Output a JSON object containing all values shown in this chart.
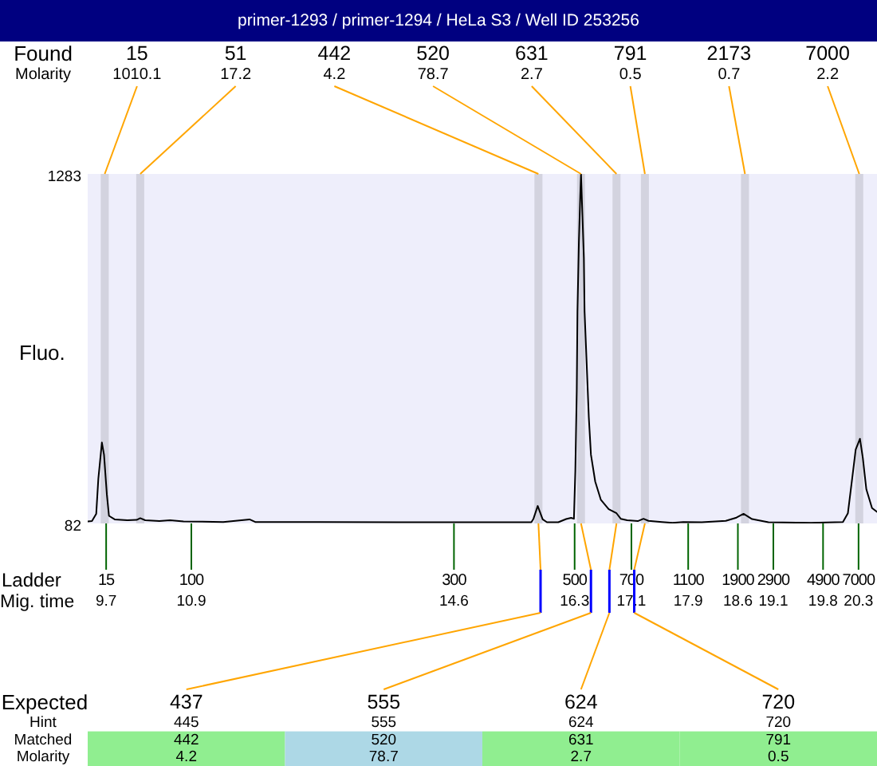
{
  "chart_data": {
    "type": "line",
    "title": "primer-1293 / primer-1294 / HeLa S3 / Well ID 253256",
    "xlabel": "Mig. time",
    "ylabel": "Fluo.",
    "x": [
      9.44,
      9.5,
      9.56,
      9.59,
      9.64,
      9.67,
      9.71,
      9.74,
      9.82,
      10.0,
      10.13,
      10.18,
      10.25,
      10.45,
      10.6,
      10.79,
      11.35,
      11.72,
      11.8,
      12.7,
      13.82,
      14.94,
      15.69,
      15.72,
      15.78,
      15.85,
      15.91,
      16.07,
      16.18,
      16.25,
      16.29,
      16.31,
      16.33,
      16.34,
      16.36,
      16.38,
      16.39,
      16.41,
      16.43,
      16.44,
      16.47,
      16.5,
      16.53,
      16.59,
      16.67,
      16.78,
      16.89,
      16.95,
      17.04,
      17.19,
      17.27,
      17.34,
      17.53,
      17.68,
      17.83,
      18.09,
      18.43,
      18.58,
      18.68,
      18.8,
      19.03,
      19.63,
      20.08,
      20.15,
      20.21,
      20.26,
      20.32,
      20.36,
      20.41,
      20.49,
      20.56
    ],
    "values": [
      89,
      90,
      115,
      236,
      360,
      318,
      181,
      108,
      96,
      93,
      94,
      100,
      93,
      90,
      93,
      89,
      87,
      96,
      87,
      87,
      86,
      86,
      86,
      98,
      142,
      96,
      86,
      86,
      97,
      101,
      98,
      263,
      537,
      811,
      1049,
      1213,
      1283,
      1140,
      994,
      811,
      630,
      446,
      318,
      226,
      163,
      131,
      117,
      98,
      93,
      90,
      98,
      91,
      87,
      84,
      87,
      86,
      91,
      102,
      115,
      97,
      86,
      84,
      87,
      117,
      236,
      336,
      373,
      308,
      199,
      135,
      122
    ],
    "color": "#000000",
    "xlim": [
      9.44,
      20.56
    ],
    "xticks": [
      9.7,
      10.9,
      14.6,
      16.3,
      17.1,
      17.9,
      18.6,
      19.1,
      19.8,
      20.3
    ],
    "ylim": [
      82,
      1283
    ],
    "yticks": [
      82,
      1283
    ],
    "ref_lines": [
      {
        "axis": "x",
        "value": 9.68,
        "color": "#d3d3df"
      },
      {
        "axis": "x",
        "value": 10.18,
        "color": "#d3d3df"
      },
      {
        "axis": "x",
        "value": 15.79,
        "color": "#d3d3df"
      },
      {
        "axis": "x",
        "value": 16.39,
        "color": "#d3d3df"
      },
      {
        "axis": "x",
        "value": 16.89,
        "color": "#d3d3df"
      },
      {
        "axis": "x",
        "value": 17.29,
        "color": "#d3d3df"
      },
      {
        "axis": "x",
        "value": 18.7,
        "color": "#d3d3df"
      },
      {
        "axis": "x",
        "value": 20.31,
        "color": "#d3d3df"
      }
    ],
    "annotations": [
      "Found",
      "Molarity",
      "15",
      "1010.1",
      "51",
      "17.2",
      "442",
      "4.2",
      "520",
      "78.7",
      "631",
      "2.7",
      "791",
      "0.5",
      "2173",
      "0.7",
      "7000",
      "2.2",
      "Ladder",
      "15",
      "100",
      "300",
      "500",
      "700",
      "1100",
      "1900",
      "2900",
      "4900",
      "7000",
      "Expected",
      "Hint",
      "Matched",
      "Molarity",
      {
        "text": "437",
        "x": 15.82
      },
      "445",
      "442",
      "4.2",
      {
        "text": "555",
        "x": 16.53
      },
      "555",
      "520",
      "78.7",
      {
        "text": "624",
        "x": 16.79
      },
      "624",
      "631",
      "2.7",
      {
        "text": "720",
        "x": 17.14
      },
      "720",
      "791",
      "0.5"
    ]
  }
}
